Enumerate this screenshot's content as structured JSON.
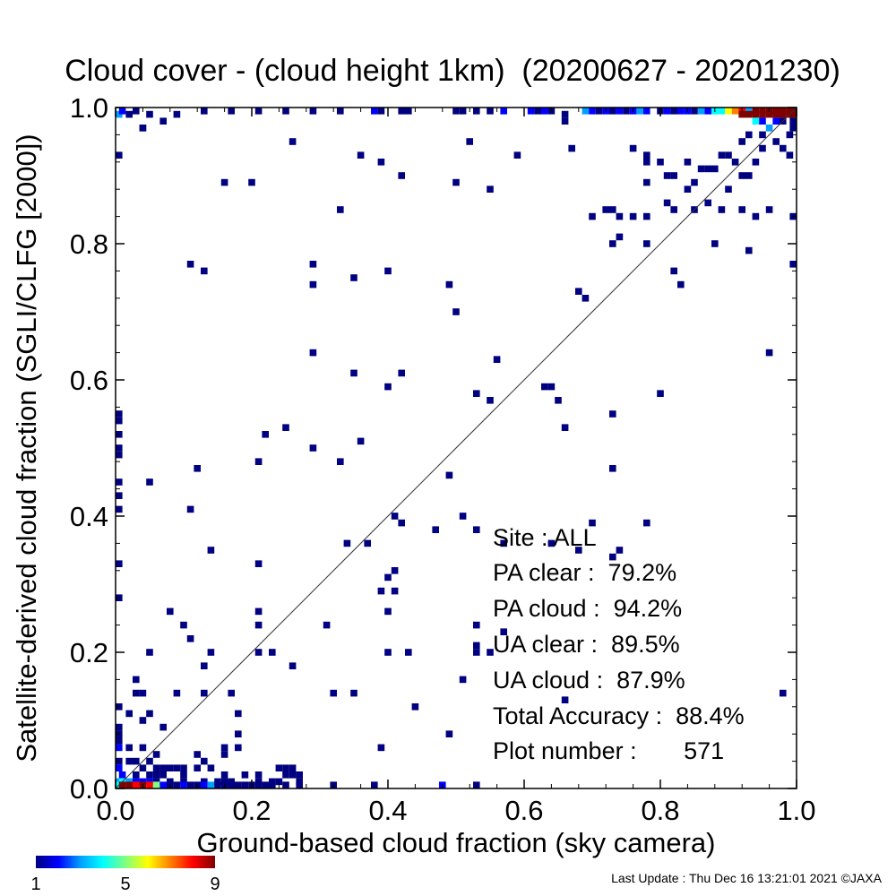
{
  "chart_data": {
    "type": "heatmap",
    "title": "Cloud cover - (cloud height 1km)  (20200627 - 20201230)",
    "xlabel": "Ground-based cloud fraction (sky camera)",
    "ylabel": "Satellite-derived cloud fraction (SGLI/CLFG [2000])",
    "xlim": [
      0,
      1
    ],
    "ylim": [
      0,
      1
    ],
    "xticks": [
      "0.0",
      "0.2",
      "0.4",
      "0.6",
      "0.8",
      "1.0"
    ],
    "yticks": [
      "0.0",
      "0.2",
      "0.4",
      "0.6",
      "0.8",
      "1.0"
    ],
    "grid": false,
    "reference_line": "y = x",
    "bin_size": 0.01,
    "colorbar": {
      "min": 1,
      "max": 9,
      "ticks": [
        "1",
        "5",
        "9"
      ],
      "colors": [
        "#000080",
        "#0000ff",
        "#00a0ff",
        "#00ffff",
        "#80ff80",
        "#ffff00",
        "#ff8000",
        "#ff0000",
        "#800000"
      ]
    },
    "points": [
      [
        0.0,
        0.99,
        3
      ],
      [
        0.01,
        1.0,
        2
      ],
      [
        0.02,
        0.99,
        1
      ],
      [
        0.03,
        1.0,
        1
      ],
      [
        0.04,
        0.97,
        1
      ],
      [
        0.05,
        0.99,
        1
      ],
      [
        0.07,
        0.98,
        1
      ],
      [
        0.09,
        0.99,
        1
      ],
      [
        0.13,
        1.0,
        1
      ],
      [
        0.17,
        1.0,
        1
      ],
      [
        0.21,
        1.0,
        1
      ],
      [
        0.25,
        1.0,
        1
      ],
      [
        0.29,
        1.0,
        1
      ],
      [
        0.33,
        1.0,
        1
      ],
      [
        0.38,
        1.0,
        2
      ],
      [
        0.39,
        1.0,
        1
      ],
      [
        0.42,
        1.0,
        1
      ],
      [
        0.43,
        1.0,
        1
      ],
      [
        0.5,
        1.0,
        1
      ],
      [
        0.51,
        1.0,
        1
      ],
      [
        0.53,
        1.0,
        1
      ],
      [
        0.55,
        1.0,
        1
      ],
      [
        0.57,
        1.0,
        2
      ],
      [
        0.61,
        1.0,
        2
      ],
      [
        0.62,
        1.0,
        1
      ],
      [
        0.63,
        1.0,
        2
      ],
      [
        0.64,
        1.0,
        1
      ],
      [
        0.66,
        0.99,
        1
      ],
      [
        0.69,
        1.0,
        3
      ],
      [
        0.7,
        1.0,
        2
      ],
      [
        0.71,
        1.0,
        1
      ],
      [
        0.72,
        1.0,
        2
      ],
      [
        0.73,
        1.0,
        1
      ],
      [
        0.74,
        1.0,
        2
      ],
      [
        0.75,
        1.0,
        1
      ],
      [
        0.76,
        1.0,
        2
      ],
      [
        0.77,
        1.0,
        3
      ],
      [
        0.78,
        1.0,
        2
      ],
      [
        0.8,
        1.0,
        1
      ],
      [
        0.81,
        1.0,
        2
      ],
      [
        0.82,
        1.0,
        1
      ],
      [
        0.83,
        1.0,
        2
      ],
      [
        0.84,
        1.0,
        2
      ],
      [
        0.85,
        1.0,
        1
      ],
      [
        0.86,
        1.0,
        3
      ],
      [
        0.87,
        1.0,
        2
      ],
      [
        0.88,
        1.0,
        4
      ],
      [
        0.89,
        1.0,
        4
      ],
      [
        0.9,
        1.0,
        6
      ],
      [
        0.91,
        1.0,
        7
      ],
      [
        0.92,
        1.0,
        8
      ],
      [
        0.93,
        1.0,
        3
      ],
      [
        0.94,
        1.0,
        9
      ],
      [
        0.95,
        1.0,
        9
      ],
      [
        0.96,
        1.0,
        9
      ],
      [
        0.97,
        1.0,
        9
      ],
      [
        0.98,
        1.0,
        9
      ],
      [
        0.99,
        1.0,
        9
      ],
      [
        1.0,
        1.0,
        9
      ],
      [
        0.92,
        0.99,
        9
      ],
      [
        0.93,
        0.99,
        9
      ],
      [
        0.94,
        0.99,
        9
      ],
      [
        0.95,
        0.99,
        9
      ],
      [
        0.96,
        0.99,
        9
      ],
      [
        0.97,
        0.99,
        9
      ],
      [
        0.98,
        0.99,
        9
      ],
      [
        0.99,
        0.99,
        9
      ],
      [
        1.0,
        0.99,
        9
      ],
      [
        0.94,
        0.98,
        4
      ],
      [
        0.95,
        0.98,
        2
      ],
      [
        0.96,
        0.97,
        3
      ],
      [
        0.97,
        0.98,
        2
      ],
      [
        0.98,
        0.98,
        1
      ],
      [
        1.0,
        0.98,
        1
      ],
      [
        1.0,
        0.97,
        1
      ],
      [
        0.99,
        0.96,
        1
      ],
      [
        0.93,
        0.96,
        1
      ],
      [
        0.92,
        0.95,
        1
      ],
      [
        0.95,
        0.96,
        1
      ],
      [
        0.98,
        0.94,
        1
      ],
      [
        0.0,
        0.93,
        1
      ],
      [
        0.04,
        0.97,
        1
      ],
      [
        0.26,
        0.95,
        1
      ],
      [
        0.52,
        0.95,
        1
      ],
      [
        0.66,
        0.98,
        1
      ],
      [
        0.67,
        0.94,
        1
      ],
      [
        0.59,
        0.93,
        1
      ],
      [
        0.36,
        0.93,
        1
      ],
      [
        0.39,
        0.92,
        1
      ],
      [
        0.42,
        0.9,
        1
      ],
      [
        0.16,
        0.89,
        1
      ],
      [
        0.2,
        0.89,
        1
      ],
      [
        0.5,
        0.89,
        1
      ],
      [
        0.55,
        0.88,
        1
      ],
      [
        0.76,
        0.94,
        1
      ],
      [
        0.78,
        0.93,
        1
      ],
      [
        0.78,
        0.92,
        1
      ],
      [
        0.8,
        0.92,
        1
      ],
      [
        0.81,
        0.9,
        1
      ],
      [
        0.82,
        0.9,
        1
      ],
      [
        0.84,
        0.92,
        1
      ],
      [
        0.85,
        0.89,
        1
      ],
      [
        0.86,
        0.91,
        1
      ],
      [
        0.87,
        0.91,
        1
      ],
      [
        0.88,
        0.91,
        1
      ],
      [
        0.89,
        0.93,
        1
      ],
      [
        0.9,
        0.93,
        1
      ],
      [
        0.91,
        0.92,
        1
      ],
      [
        0.92,
        0.9,
        1
      ],
      [
        0.93,
        0.9,
        1
      ],
      [
        0.94,
        0.92,
        1
      ],
      [
        0.95,
        0.94,
        1
      ],
      [
        0.97,
        0.95,
        1
      ],
      [
        0.99,
        0.93,
        1
      ],
      [
        0.78,
        0.89,
        1
      ],
      [
        0.84,
        0.88,
        1
      ],
      [
        0.87,
        0.86,
        1
      ],
      [
        0.9,
        0.88,
        1
      ],
      [
        0.72,
        0.85,
        1
      ],
      [
        0.73,
        0.85,
        1
      ],
      [
        0.74,
        0.84,
        1
      ],
      [
        0.7,
        0.84,
        1
      ],
      [
        0.76,
        0.84,
        1
      ],
      [
        0.78,
        0.84,
        1
      ],
      [
        0.81,
        0.86,
        1
      ],
      [
        0.82,
        0.85,
        1
      ],
      [
        0.85,
        0.85,
        1
      ],
      [
        0.89,
        0.85,
        1
      ],
      [
        0.92,
        0.85,
        1
      ],
      [
        0.94,
        0.84,
        1
      ],
      [
        0.96,
        0.85,
        1
      ],
      [
        1.0,
        0.84,
        1
      ],
      [
        0.33,
        0.85,
        1
      ],
      [
        0.73,
        0.8,
        1
      ],
      [
        0.74,
        0.81,
        1
      ],
      [
        0.78,
        0.8,
        1
      ],
      [
        0.88,
        0.8,
        1
      ],
      [
        0.93,
        0.79,
        1
      ],
      [
        1.0,
        0.77,
        1
      ],
      [
        0.11,
        0.77,
        1
      ],
      [
        0.13,
        0.76,
        1
      ],
      [
        0.29,
        0.77,
        1
      ],
      [
        0.29,
        0.74,
        1
      ],
      [
        0.35,
        0.75,
        1
      ],
      [
        0.4,
        0.76,
        1
      ],
      [
        0.49,
        0.74,
        1
      ],
      [
        0.5,
        0.7,
        1
      ],
      [
        0.68,
        0.73,
        1
      ],
      [
        0.69,
        0.72,
        1
      ],
      [
        0.82,
        0.76,
        1
      ],
      [
        0.83,
        0.74,
        1
      ],
      [
        0.29,
        0.64,
        1
      ],
      [
        0.35,
        0.61,
        1
      ],
      [
        0.42,
        0.61,
        1
      ],
      [
        0.4,
        0.59,
        1
      ],
      [
        0.53,
        0.58,
        1
      ],
      [
        0.55,
        0.57,
        1
      ],
      [
        0.56,
        0.63,
        1
      ],
      [
        0.63,
        0.59,
        1
      ],
      [
        0.64,
        0.59,
        1
      ],
      [
        0.65,
        0.57,
        1
      ],
      [
        0.66,
        0.53,
        1
      ],
      [
        0.73,
        0.55,
        1
      ],
      [
        0.8,
        0.58,
        1
      ],
      [
        0.96,
        0.64,
        1
      ],
      [
        0.0,
        0.55,
        1
      ],
      [
        0.0,
        0.54,
        1
      ],
      [
        0.0,
        0.52,
        1
      ],
      [
        0.0,
        0.5,
        1
      ],
      [
        0.0,
        0.49,
        1
      ],
      [
        0.0,
        0.45,
        1
      ],
      [
        0.0,
        0.43,
        1
      ],
      [
        0.0,
        0.41,
        1
      ],
      [
        0.0,
        0.33,
        1
      ],
      [
        0.0,
        0.28,
        1
      ],
      [
        0.05,
        0.45,
        1
      ],
      [
        0.12,
        0.47,
        1
      ],
      [
        0.11,
        0.41,
        1
      ],
      [
        0.14,
        0.35,
        1
      ],
      [
        0.21,
        0.48,
        1
      ],
      [
        0.22,
        0.52,
        1
      ],
      [
        0.25,
        0.53,
        1
      ],
      [
        0.29,
        0.5,
        1
      ],
      [
        0.33,
        0.48,
        1
      ],
      [
        0.36,
        0.51,
        1
      ],
      [
        0.34,
        0.36,
        1
      ],
      [
        0.37,
        0.36,
        1
      ],
      [
        0.41,
        0.4,
        1
      ],
      [
        0.42,
        0.39,
        1
      ],
      [
        0.47,
        0.38,
        1
      ],
      [
        0.49,
        0.46,
        1
      ],
      [
        0.51,
        0.4,
        1
      ],
      [
        0.53,
        0.38,
        1
      ],
      [
        0.57,
        0.36,
        1
      ],
      [
        0.64,
        0.36,
        1
      ],
      [
        0.68,
        0.35,
        1
      ],
      [
        0.7,
        0.39,
        1
      ],
      [
        0.73,
        0.34,
        1
      ],
      [
        0.74,
        0.35,
        1
      ],
      [
        0.78,
        0.39,
        1
      ],
      [
        0.73,
        0.47,
        1
      ],
      [
        0.21,
        0.33,
        1
      ],
      [
        0.39,
        0.29,
        1
      ],
      [
        0.4,
        0.31,
        1
      ],
      [
        0.41,
        0.32,
        1
      ],
      [
        0.41,
        0.29,
        1
      ],
      [
        0.4,
        0.26,
        1
      ],
      [
        0.08,
        0.26,
        1
      ],
      [
        0.1,
        0.24,
        1
      ],
      [
        0.11,
        0.22,
        1
      ],
      [
        0.13,
        0.18,
        1
      ],
      [
        0.14,
        0.2,
        1
      ],
      [
        0.21,
        0.26,
        1
      ],
      [
        0.21,
        0.24,
        1
      ],
      [
        0.21,
        0.2,
        1
      ],
      [
        0.23,
        0.2,
        1
      ],
      [
        0.26,
        0.18,
        1
      ],
      [
        0.31,
        0.24,
        1
      ],
      [
        0.4,
        0.2,
        1
      ],
      [
        0.43,
        0.2,
        1
      ],
      [
        0.53,
        0.24,
        1
      ],
      [
        0.53,
        0.21,
        1
      ],
      [
        0.53,
        0.2,
        1
      ],
      [
        0.51,
        0.16,
        1
      ],
      [
        0.55,
        0.2,
        1
      ],
      [
        0.57,
        0.23,
        1
      ],
      [
        0.05,
        0.2,
        1
      ],
      [
        0.03,
        0.16,
        1
      ],
      [
        0.03,
        0.14,
        1
      ],
      [
        0.04,
        0.14,
        1
      ],
      [
        0.09,
        0.14,
        1
      ],
      [
        0.13,
        0.14,
        1
      ],
      [
        0.17,
        0.14,
        1
      ],
      [
        0.32,
        0.14,
        1
      ],
      [
        0.35,
        0.14,
        1
      ],
      [
        0.44,
        0.12,
        1
      ],
      [
        0.49,
        0.08,
        1
      ],
      [
        0.66,
        0.13,
        1
      ],
      [
        0.98,
        0.14,
        1
      ],
      [
        0.0,
        0.12,
        1
      ],
      [
        0.0,
        0.09,
        1
      ],
      [
        0.0,
        0.08,
        1
      ],
      [
        0.0,
        0.07,
        1
      ],
      [
        0.0,
        0.06,
        2
      ],
      [
        0.02,
        0.11,
        1
      ],
      [
        0.04,
        0.1,
        1
      ],
      [
        0.05,
        0.11,
        1
      ],
      [
        0.07,
        0.09,
        1
      ],
      [
        0.18,
        0.11,
        1
      ],
      [
        0.18,
        0.08,
        1
      ],
      [
        0.18,
        0.06,
        1
      ],
      [
        0.16,
        0.06,
        1
      ],
      [
        0.16,
        0.05,
        1
      ],
      [
        0.12,
        0.05,
        1
      ],
      [
        0.13,
        0.04,
        1
      ],
      [
        0.12,
        0.03,
        1
      ],
      [
        0.39,
        0.06,
        1
      ],
      [
        0.0,
        0.04,
        1
      ],
      [
        0.0,
        0.03,
        2
      ],
      [
        0.01,
        0.02,
        2
      ],
      [
        0.02,
        0.06,
        1
      ],
      [
        0.02,
        0.04,
        1
      ],
      [
        0.03,
        0.04,
        1
      ],
      [
        0.04,
        0.06,
        1
      ],
      [
        0.04,
        0.03,
        1
      ],
      [
        0.05,
        0.04,
        1
      ],
      [
        0.06,
        0.05,
        1
      ],
      [
        0.06,
        0.03,
        1
      ],
      [
        0.07,
        0.03,
        1
      ],
      [
        0.08,
        0.03,
        1
      ],
      [
        0.09,
        0.03,
        1
      ],
      [
        0.1,
        0.03,
        1
      ],
      [
        0.06,
        0.02,
        1
      ],
      [
        0.07,
        0.02,
        1
      ],
      [
        0.03,
        0.02,
        1
      ],
      [
        0.05,
        0.02,
        1
      ],
      [
        0.1,
        0.02,
        1
      ],
      [
        0.14,
        0.03,
        1
      ],
      [
        0.16,
        0.02,
        1
      ],
      [
        0.19,
        0.02,
        1
      ],
      [
        0.21,
        0.02,
        1
      ],
      [
        0.24,
        0.03,
        1
      ],
      [
        0.25,
        0.03,
        1
      ],
      [
        0.26,
        0.03,
        1
      ],
      [
        0.25,
        0.02,
        1
      ],
      [
        0.26,
        0.02,
        1
      ],
      [
        0.27,
        0.02,
        1
      ],
      [
        0.27,
        0.01,
        1
      ],
      [
        0.0,
        0.01,
        3
      ],
      [
        0.01,
        0.01,
        4
      ],
      [
        0.02,
        0.01,
        3
      ],
      [
        0.03,
        0.01,
        2
      ],
      [
        0.04,
        0.01,
        2
      ],
      [
        0.05,
        0.01,
        2
      ],
      [
        0.06,
        0.01,
        1
      ],
      [
        0.08,
        0.01,
        1
      ],
      [
        0.1,
        0.01,
        1
      ],
      [
        0.13,
        0.01,
        1
      ],
      [
        0.15,
        0.01,
        1
      ],
      [
        0.16,
        0.01,
        1
      ],
      [
        0.17,
        0.01,
        1
      ],
      [
        0.21,
        0.01,
        1
      ],
      [
        0.23,
        0.01,
        1
      ],
      [
        0.24,
        0.01,
        1
      ],
      [
        0.27,
        0.0,
        1
      ],
      [
        0.0,
        0.0,
        4
      ],
      [
        0.01,
        0.0,
        9
      ],
      [
        0.02,
        0.0,
        9
      ],
      [
        0.03,
        0.0,
        8
      ],
      [
        0.04,
        0.0,
        9
      ],
      [
        0.05,
        0.0,
        8
      ],
      [
        0.06,
        0.0,
        5
      ],
      [
        0.07,
        0.0,
        2
      ],
      [
        0.08,
        0.0,
        1
      ],
      [
        0.09,
        0.0,
        1
      ],
      [
        0.1,
        0.0,
        2
      ],
      [
        0.11,
        0.0,
        1
      ],
      [
        0.12,
        0.0,
        1
      ],
      [
        0.13,
        0.0,
        2
      ],
      [
        0.14,
        0.0,
        3
      ],
      [
        0.15,
        0.0,
        1
      ],
      [
        0.16,
        0.0,
        1
      ],
      [
        0.17,
        0.0,
        1
      ],
      [
        0.18,
        0.0,
        1
      ],
      [
        0.19,
        0.0,
        1
      ],
      [
        0.2,
        0.0,
        1
      ],
      [
        0.21,
        0.0,
        1
      ],
      [
        0.22,
        0.0,
        1
      ],
      [
        0.23,
        0.0,
        1
      ],
      [
        0.25,
        0.0,
        1
      ],
      [
        0.32,
        0.0,
        1
      ],
      [
        0.38,
        0.0,
        1
      ],
      [
        0.48,
        0.0,
        2
      ],
      [
        0.53,
        0.0,
        1
      ]
    ]
  },
  "stats": {
    "site": "Site : ALL",
    "pa_clear": "PA clear :  79.2%",
    "pa_cloud": "PA cloud :  94.2%",
    "ua_clear": "UA clear :  89.5%",
    "ua_cloud": "UA cloud :  87.9%",
    "total_accuracy": "Total Accuracy :  88.4%",
    "plot_number": "Plot number :       571"
  },
  "footer": "Last Update : Thu Dec 16 13:21:01 2021  ©JAXA"
}
